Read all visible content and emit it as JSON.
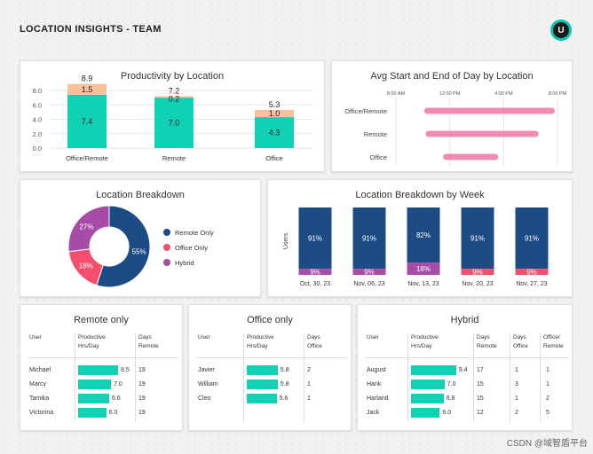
{
  "header": {
    "title": "LOCATION INSIGHTS - TEAM",
    "avatar": "U"
  },
  "colors": {
    "teal": "#11d1b5",
    "peach": "#f9c19b",
    "navy": "#1d4b84",
    "pink": "#f2579b",
    "purple": "#a64ca6",
    "red": "#f4506e",
    "gantt": "#f08bb4"
  },
  "productivity": {
    "title": "Productivity by Location",
    "chart_data": {
      "type": "bar",
      "stacked": true,
      "categories": [
        "Office/Remote",
        "Remote",
        "Office"
      ],
      "series": [
        {
          "values": [
            7.4,
            7.0,
            4.3
          ],
          "color": "#11d1b5"
        },
        {
          "values": [
            1.5,
            0.2,
            1.0
          ],
          "color": "#f9c19b"
        }
      ],
      "value_labels": [
        [
          "7.4",
          "1.5"
        ],
        [
          "7.0",
          "0.2"
        ],
        [
          "4.3",
          "1.0"
        ]
      ],
      "totals": [
        "8.9",
        "7.2",
        "5.3"
      ],
      "yticks": [
        "0.0",
        "2.0",
        "4.0",
        "6.0",
        "8.0"
      ],
      "ylim": [
        0,
        8.9
      ]
    }
  },
  "startend": {
    "title": "Avg Start and End of Day by Location",
    "chart_data": {
      "type": "gantt",
      "xticks": [
        "8:00 AM",
        "12:00 PM",
        "4:00 PM",
        "8:00 PM"
      ],
      "x_hours": [
        8,
        12,
        16,
        20
      ],
      "categories": [
        "Office/Remote",
        "Remote",
        "Office"
      ],
      "start_hours": [
        10.1,
        10.2,
        11.5
      ],
      "end_hours": [
        19.8,
        18.6,
        15.6
      ]
    }
  },
  "breakdown": {
    "title": "Location Breakdown",
    "chart_data": {
      "type": "pie",
      "donut": true,
      "labels": [
        "Remote Only",
        "Office Only",
        "Hybrid"
      ],
      "values": [
        55,
        18,
        27
      ],
      "value_labels": [
        "55%",
        "18%",
        "27%"
      ],
      "colors": [
        "#1d4b84",
        "#f4506e",
        "#a64ca6"
      ]
    }
  },
  "weekly": {
    "title": "Location Breakdown by Week",
    "chart_data": {
      "type": "bar",
      "stacked": true,
      "ylabel": "Users",
      "categories": [
        "Oct, 30, 23",
        "Nov, 06, 23",
        "Nov, 13, 23",
        "Nov, 20, 23",
        "Nov, 27, 23"
      ],
      "series": [
        {
          "values": [
            91,
            91,
            82,
            91,
            91
          ],
          "color": "#1d4b84"
        },
        {
          "values": [
            9,
            9,
            18,
            9,
            9
          ],
          "colors": [
            "#a64ca6",
            "#a64ca6",
            "#a64ca6",
            "#f4506e",
            "#f4506e"
          ]
        }
      ],
      "value_labels": [
        [
          "91%",
          "9%"
        ],
        [
          "91%",
          "9%"
        ],
        [
          "82%",
          "18%"
        ],
        [
          "91%",
          "9%"
        ],
        [
          "91%",
          "9%"
        ]
      ]
    }
  },
  "remote_only": {
    "title": "Remote only",
    "headers": {
      "user": "User",
      "hrs1": "Productive",
      "hrs2": "Hrs/Day",
      "d1": "Days",
      "d2": "Remote"
    },
    "rows": [
      {
        "user": "Michael",
        "hrs": 8.5,
        "hrs_label": "8.5",
        "days": "19"
      },
      {
        "user": "Marcy",
        "hrs": 7.0,
        "hrs_label": "7.0",
        "days": "19"
      },
      {
        "user": "Tamika",
        "hrs": 6.6,
        "hrs_label": "6.6",
        "days": "19"
      },
      {
        "user": "Victorina",
        "hrs": 6.0,
        "hrs_label": "6.0",
        "days": "19"
      }
    ]
  },
  "office_only": {
    "title": "Office only",
    "headers": {
      "user": "User",
      "hrs1": "Productive",
      "hrs2": "Hrs/Day",
      "d1": "Days",
      "d2": "Office"
    },
    "rows": [
      {
        "user": "Javier",
        "hrs": 5.8,
        "hrs_label": "5.8",
        "days": "2"
      },
      {
        "user": "William",
        "hrs": 5.8,
        "hrs_label": "5.8",
        "days": "1"
      },
      {
        "user": "Cleo",
        "hrs": 5.6,
        "hrs_label": "5.6",
        "days": "1"
      }
    ]
  },
  "hybrid": {
    "title": "Hybrid",
    "headers": {
      "user": "User",
      "hrs1": "Productive",
      "hrs2": "Hrs/Day",
      "d1": "Days",
      "d2": "Remote",
      "o1": "Days",
      "o2": "Office",
      "p1": "Office/",
      "p2": "Remote"
    },
    "rows": [
      {
        "user": "August",
        "hrs": 9.4,
        "hrs_label": "9.4",
        "remote": "17",
        "office": "1",
        "ratio": "1"
      },
      {
        "user": "Hank",
        "hrs": 7.0,
        "hrs_label": "7.0",
        "remote": "15",
        "office": "3",
        "ratio": "1"
      },
      {
        "user": "Harland",
        "hrs": 6.8,
        "hrs_label": "6.8",
        "remote": "15",
        "office": "1",
        "ratio": "2"
      },
      {
        "user": "Jack",
        "hrs": 6.0,
        "hrs_label": "6.0",
        "remote": "12",
        "office": "2",
        "ratio": "5"
      }
    ]
  },
  "watermark": "CSDN @域智盾平台"
}
